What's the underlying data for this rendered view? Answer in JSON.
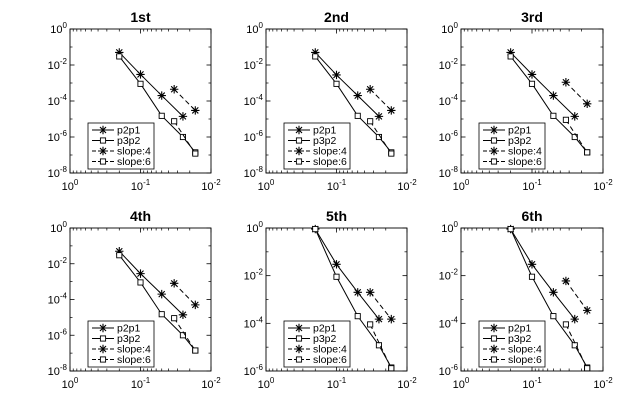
{
  "figure": {
    "description_free": true
  },
  "chart_data": [
    {
      "type": "line",
      "title": "1st",
      "xscale": "log-reversed",
      "yscale": "log",
      "xlim": [
        1,
        0.01
      ],
      "ylim": [
        1e-08,
        1
      ],
      "xticks": [
        "10^0",
        "10^-1",
        "10^-2"
      ],
      "yticks": [
        "10^0",
        "10^-2",
        "10^-4",
        "10^-6",
        "10^-8"
      ],
      "legend_position": "bottom-left",
      "series": [
        {
          "name": "p2p1",
          "marker": "asterisk",
          "style": "solid",
          "x": [
            0.2,
            0.1,
            0.05,
            0.025
          ],
          "y": [
            0.05,
            0.003,
            0.0002,
            1.4e-05
          ]
        },
        {
          "name": "p3p2",
          "marker": "square",
          "style": "solid",
          "x": [
            0.2,
            0.1,
            0.05,
            0.025,
            0.0167
          ],
          "y": [
            0.03,
            0.0009,
            1.5e-05,
            1e-06,
            1.4e-07
          ]
        },
        {
          "name": "slope:4",
          "marker": "asterisk",
          "style": "dashed",
          "x": [
            0.0333,
            0.0167
          ],
          "y": [
            0.00045,
            3e-05
          ]
        },
        {
          "name": "slope:6",
          "marker": "square",
          "style": "dashed",
          "x": [
            0.0333,
            0.0167
          ],
          "y": [
            7.5e-06,
            1.2e-07
          ]
        }
      ]
    },
    {
      "type": "line",
      "title": "2nd",
      "xscale": "log-reversed",
      "yscale": "log",
      "xlim": [
        1,
        0.01
      ],
      "ylim": [
        1e-08,
        1
      ],
      "xticks": [
        "10^0",
        "10^-1",
        "10^-2"
      ],
      "yticks": [
        "10^0",
        "10^-2",
        "10^-4",
        "10^-6",
        "10^-8"
      ],
      "legend_position": "bottom-left",
      "series": [
        {
          "name": "p2p1",
          "marker": "asterisk",
          "style": "solid",
          "x": [
            0.2,
            0.1,
            0.05,
            0.025
          ],
          "y": [
            0.05,
            0.0028,
            0.0002,
            1.4e-05
          ]
        },
        {
          "name": "p3p2",
          "marker": "square",
          "style": "solid",
          "x": [
            0.2,
            0.1,
            0.05,
            0.025,
            0.0167
          ],
          "y": [
            0.03,
            0.0009,
            1.5e-05,
            1e-06,
            1.4e-07
          ]
        },
        {
          "name": "slope:4",
          "marker": "asterisk",
          "style": "dashed",
          "x": [
            0.0333,
            0.0167
          ],
          "y": [
            0.00045,
            3e-05
          ]
        },
        {
          "name": "slope:6",
          "marker": "square",
          "style": "dashed",
          "x": [
            0.0333,
            0.0167
          ],
          "y": [
            7.5e-06,
            1.2e-07
          ]
        }
      ]
    },
    {
      "type": "line",
      "title": "3rd",
      "xscale": "log-reversed",
      "yscale": "log",
      "xlim": [
        1,
        0.01
      ],
      "ylim": [
        1e-08,
        1
      ],
      "xticks": [
        "10^0",
        "10^-1",
        "10^-2"
      ],
      "yticks": [
        "10^0",
        "10^-2",
        "10^-4",
        "10^-6",
        "10^-8"
      ],
      "legend_position": "bottom-left",
      "series": [
        {
          "name": "p2p1",
          "marker": "asterisk",
          "style": "solid",
          "x": [
            0.2,
            0.1,
            0.05,
            0.025
          ],
          "y": [
            0.05,
            0.003,
            0.0002,
            1.4e-05
          ]
        },
        {
          "name": "p3p2",
          "marker": "square",
          "style": "solid",
          "x": [
            0.2,
            0.1,
            0.05,
            0.025,
            0.0167
          ],
          "y": [
            0.03,
            0.0009,
            1.5e-05,
            1e-06,
            1.4e-07
          ]
        },
        {
          "name": "slope:4",
          "marker": "asterisk",
          "style": "dashed",
          "x": [
            0.0333,
            0.0167
          ],
          "y": [
            0.0011,
            7e-05
          ]
        },
        {
          "name": "slope:6",
          "marker": "square",
          "style": "dashed",
          "x": [
            0.0333,
            0.0167
          ],
          "y": [
            9e-06,
            1.4e-07
          ]
        }
      ]
    },
    {
      "type": "line",
      "title": "4th",
      "xscale": "log-reversed",
      "yscale": "log",
      "xlim": [
        1,
        0.01
      ],
      "ylim": [
        1e-08,
        1
      ],
      "xticks": [
        "10^0",
        "10^-1",
        "10^-2"
      ],
      "yticks": [
        "10^0",
        "10^-2",
        "10^-4",
        "10^-6",
        "10^-8"
      ],
      "legend_position": "bottom-left",
      "series": [
        {
          "name": "p2p1",
          "marker": "asterisk",
          "style": "solid",
          "x": [
            0.2,
            0.1,
            0.05,
            0.025
          ],
          "y": [
            0.05,
            0.0028,
            0.0002,
            1.4e-05
          ]
        },
        {
          "name": "p3p2",
          "marker": "square",
          "style": "solid",
          "x": [
            0.2,
            0.1,
            0.05,
            0.025,
            0.0167
          ],
          "y": [
            0.03,
            0.0009,
            1.5e-05,
            1e-06,
            1.4e-07
          ]
        },
        {
          "name": "slope:4",
          "marker": "asterisk",
          "style": "dashed",
          "x": [
            0.0333,
            0.0167
          ],
          "y": [
            0.0008,
            5e-05
          ]
        },
        {
          "name": "slope:6",
          "marker": "square",
          "style": "dashed",
          "x": [
            0.0333,
            0.0167
          ],
          "y": [
            9e-06,
            1.4e-07
          ]
        }
      ]
    },
    {
      "type": "line",
      "title": "5th",
      "xscale": "log-reversed",
      "yscale": "log",
      "xlim": [
        1,
        0.01
      ],
      "ylim": [
        1e-06,
        1
      ],
      "xticks": [
        "10^0",
        "10^-1",
        "10^-2"
      ],
      "yticks": [
        "10^0",
        "10^-2",
        "10^-4",
        "10^-6"
      ],
      "legend_position": "bottom-left",
      "series": [
        {
          "name": "p2p1",
          "marker": "asterisk",
          "style": "solid",
          "x": [
            0.2,
            0.1,
            0.05,
            0.025
          ],
          "y": [
            0.9,
            0.03,
            0.002,
            0.00015
          ]
        },
        {
          "name": "p3p2",
          "marker": "square",
          "style": "solid",
          "x": [
            0.2,
            0.1,
            0.05,
            0.025,
            0.0167
          ],
          "y": [
            0.9,
            0.009,
            0.0002,
            1.2e-05,
            1.4e-06
          ]
        },
        {
          "name": "slope:4",
          "marker": "asterisk",
          "style": "dashed",
          "x": [
            0.0333,
            0.0167
          ],
          "y": [
            0.002,
            0.00015
          ]
        },
        {
          "name": "slope:6",
          "marker": "square",
          "style": "dashed",
          "x": [
            0.0333,
            0.0167
          ],
          "y": [
            9e-05,
            1.3e-06
          ]
        }
      ]
    },
    {
      "type": "line",
      "title": "6th",
      "xscale": "log-reversed",
      "yscale": "log",
      "xlim": [
        1,
        0.01
      ],
      "ylim": [
        1e-06,
        1
      ],
      "xticks": [
        "10^0",
        "10^-1",
        "10^-2"
      ],
      "yticks": [
        "10^0",
        "10^-2",
        "10^-4",
        "10^-6"
      ],
      "legend_position": "bottom-left",
      "series": [
        {
          "name": "p2p1",
          "marker": "asterisk",
          "style": "solid",
          "x": [
            0.2,
            0.1,
            0.05,
            0.025
          ],
          "y": [
            0.9,
            0.03,
            0.002,
            0.00015
          ]
        },
        {
          "name": "p3p2",
          "marker": "square",
          "style": "solid",
          "x": [
            0.2,
            0.1,
            0.05,
            0.025,
            0.0167
          ],
          "y": [
            0.9,
            0.009,
            0.0002,
            1.2e-05,
            1.4e-06
          ]
        },
        {
          "name": "slope:4",
          "marker": "asterisk",
          "style": "dashed",
          "x": [
            0.0333,
            0.0167
          ],
          "y": [
            0.006,
            0.00035
          ]
        },
        {
          "name": "slope:6",
          "marker": "square",
          "style": "dashed",
          "x": [
            0.0333,
            0.0167
          ],
          "y": [
            9e-05,
            1.3e-06
          ]
        }
      ]
    }
  ]
}
